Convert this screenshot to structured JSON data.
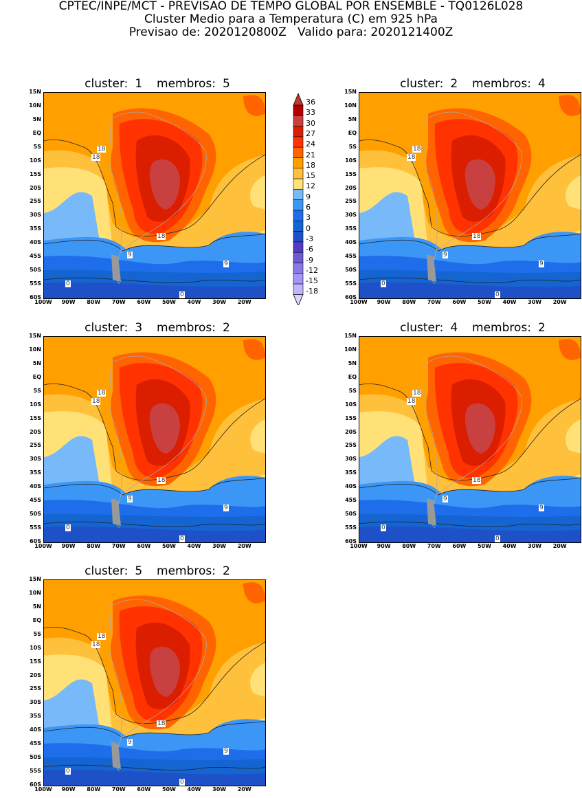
{
  "header": {
    "line1": "CPTEC/INPE/MCT - PREVISAO DE TEMPO GLOBAL POR ENSEMBLE - TQ0126L028",
    "line2": "Cluster Medio para a Temperatura (C) em 925 hPa",
    "line3": "Previsao de: 2020120800Z   Valido para: 2020121400Z"
  },
  "axes": {
    "lat_ticks": [
      "15N",
      "10N",
      "5N",
      "EQ",
      "5S",
      "10S",
      "15S",
      "20S",
      "25S",
      "30S",
      "35S",
      "40S",
      "45S",
      "50S",
      "55S",
      "60S"
    ],
    "lon_ticks": [
      "100W",
      "90W",
      "80W",
      "70W",
      "60W",
      "50W",
      "40W",
      "30W",
      "20W"
    ]
  },
  "panels": [
    {
      "cluster_label": "cluster:",
      "cluster": "1",
      "membros_label": "membros:",
      "membros": "5",
      "contour_labels": [
        "18",
        "18",
        "18",
        "9",
        "9",
        "0",
        "0"
      ]
    },
    {
      "cluster_label": "cluster:",
      "cluster": "2",
      "membros_label": "membros:",
      "membros": "4",
      "contour_labels": [
        "18",
        "18",
        "18",
        "9",
        "9",
        "0",
        "0"
      ]
    },
    {
      "cluster_label": "cluster:",
      "cluster": "3",
      "membros_label": "membros:",
      "membros": "2",
      "contour_labels": [
        "18",
        "18",
        "18",
        "9",
        "9",
        "0",
        "0"
      ]
    },
    {
      "cluster_label": "cluster:",
      "cluster": "4",
      "membros_label": "membros:",
      "membros": "2",
      "contour_labels": [
        "18",
        "18",
        "18",
        "9",
        "9",
        "0",
        "0"
      ]
    },
    {
      "cluster_label": "cluster:",
      "cluster": "5",
      "membros_label": "membros:",
      "membros": "2",
      "contour_labels": [
        "18",
        "18",
        "18",
        "9",
        "9",
        "0",
        "0"
      ]
    }
  ],
  "colorbar": {
    "levels": [
      "36",
      "33",
      "30",
      "27",
      "24",
      "21",
      "18",
      "15",
      "12",
      "9",
      "6",
      "3",
      "0",
      "-3",
      "-6",
      "-9",
      "-12",
      "-15",
      "-18"
    ],
    "colors": [
      "#b40000",
      "#c84040",
      "#dc1e00",
      "#ff3200",
      "#ff6400",
      "#ffa000",
      "#ffc03c",
      "#ffe178",
      "#78b9fa",
      "#3c96f5",
      "#1e6eeb",
      "#1464d2",
      "#1e50c8",
      "#503cc8",
      "#6e5ad2",
      "#8c78e6",
      "#a596fa",
      "#c3b4ff"
    ],
    "top_color": "#c0392b",
    "bottom_color": "#dcd2ff"
  }
}
